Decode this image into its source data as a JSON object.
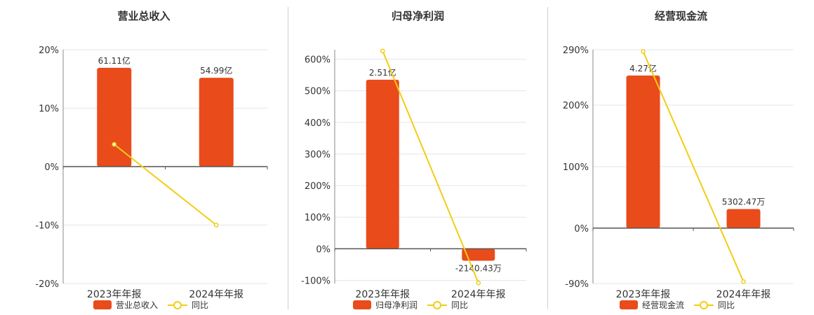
{
  "colors": {
    "bar": "#e94b1b",
    "line": "#f2cd14",
    "grid": "#e3e6ef",
    "axis": "#555555"
  },
  "chart_data": [
    {
      "type": "bar",
      "title": "营业总收入",
      "categories": [
        "2023年年报",
        "2024年年报"
      ],
      "series": [
        {
          "name": "营业总收入",
          "type": "bar",
          "values": [
            16.9,
            15.2
          ],
          "labels": [
            "61.11亿",
            "54.99亿"
          ]
        },
        {
          "name": "同比",
          "type": "line",
          "values": [
            3.8,
            -10.0
          ]
        }
      ],
      "ylim": [
        -20,
        20
      ],
      "yticks": [
        "20%",
        "10%",
        "0%",
        "-10%",
        "-20%"
      ],
      "ytick_values": [
        20,
        10,
        0,
        -10,
        -20
      ],
      "grid": true,
      "legend": "bottom"
    },
    {
      "type": "bar",
      "title": "归母净利润",
      "categories": [
        "2023年年报",
        "2024年年报"
      ],
      "series": [
        {
          "name": "归母净利润",
          "type": "bar",
          "values": [
            535,
            -38
          ],
          "labels": [
            "2.51亿",
            "-2140.43万"
          ]
        },
        {
          "name": "同比",
          "type": "line",
          "values": [
            626,
            -108
          ]
        }
      ],
      "ylim": [
        -110,
        630
      ],
      "yticks": [
        "600%",
        "500%",
        "400%",
        "300%",
        "200%",
        "100%",
        "0%",
        "-100%"
      ],
      "ytick_values": [
        600,
        500,
        400,
        300,
        200,
        100,
        0,
        -100
      ],
      "grid": true,
      "legend": "bottom"
    },
    {
      "type": "bar",
      "title": "经营现金流",
      "categories": [
        "2023年年报",
        "2024年年报"
      ],
      "series": [
        {
          "name": "经营现金流",
          "type": "bar",
          "values": [
            248,
            31
          ],
          "labels": [
            "4.27亿",
            "5302.47万"
          ]
        },
        {
          "name": "同比",
          "type": "line",
          "values": [
            287,
            -87
          ]
        }
      ],
      "ylim": [
        -90,
        290
      ],
      "yticks": [
        "290%",
        "200%",
        "100%",
        "0%",
        "-90%"
      ],
      "ytick_values": [
        290,
        200,
        100,
        0,
        -90
      ],
      "grid": true,
      "legend": "bottom"
    }
  ]
}
